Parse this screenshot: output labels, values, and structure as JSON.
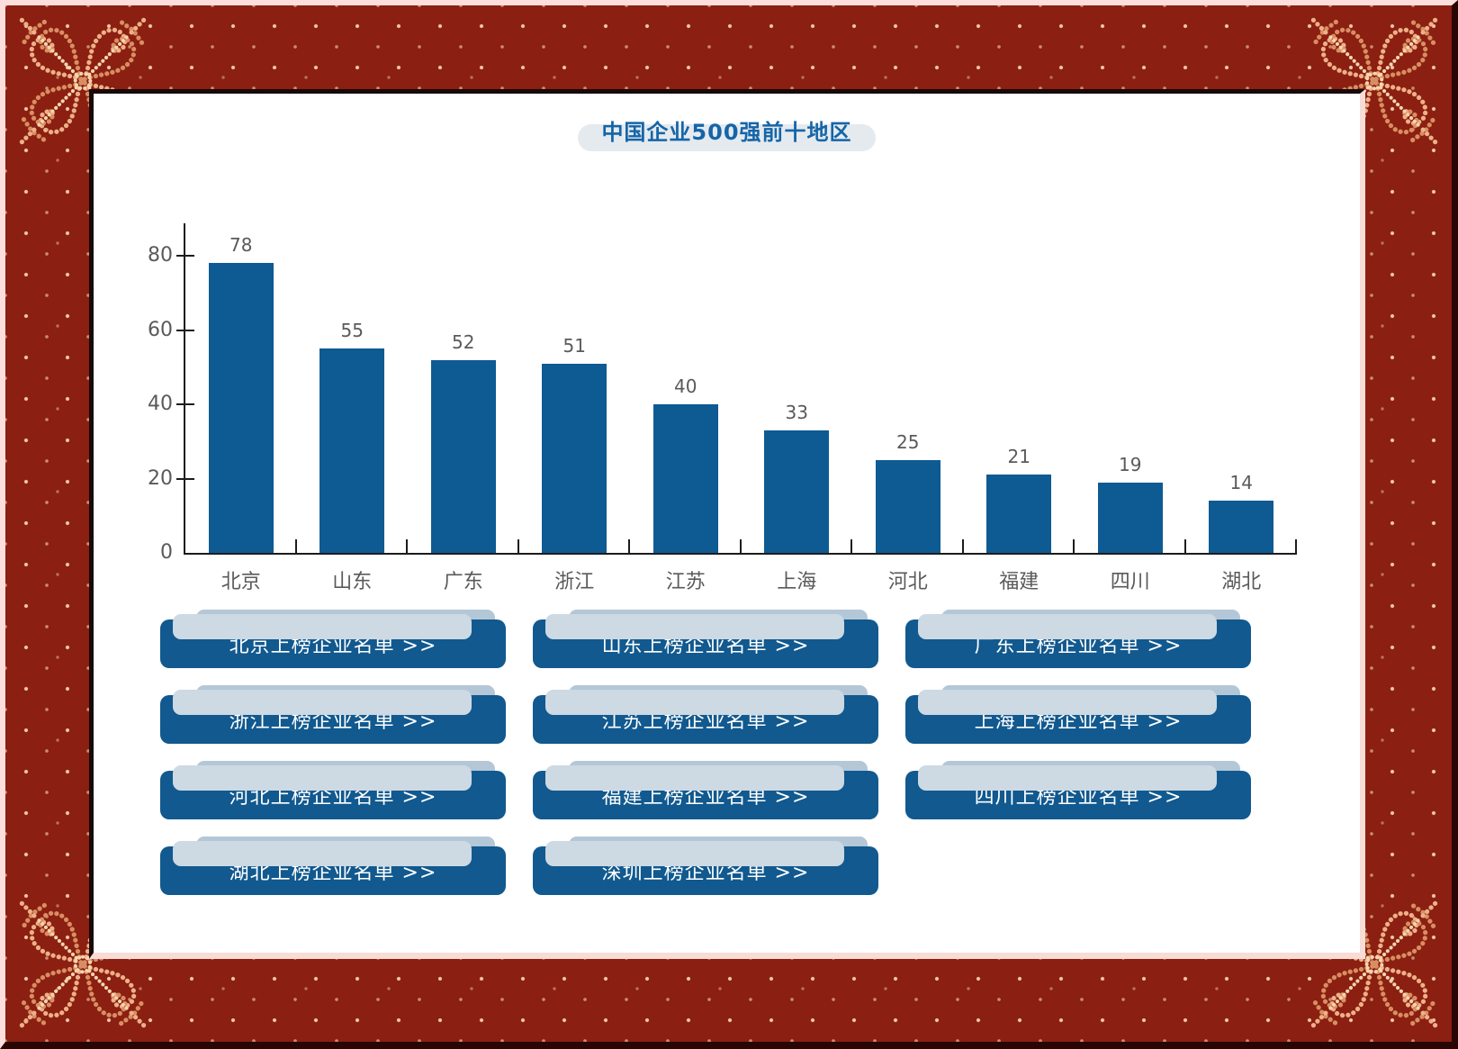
{
  "page": {
    "title": "中国企业500强前十地区"
  },
  "chart_data": {
    "type": "bar",
    "title": "中国企业500强前十地区",
    "categories": [
      "北京",
      "山东",
      "广东",
      "浙江",
      "江苏",
      "上海",
      "河北",
      "福建",
      "四川",
      "湖北"
    ],
    "values": [
      78,
      55,
      52,
      51,
      40,
      33,
      25,
      21,
      19,
      14
    ],
    "xlabel": "",
    "ylabel": "",
    "ylim": [
      0,
      80
    ],
    "yticks": [
      0,
      20,
      40,
      60,
      80
    ],
    "grid": false,
    "legend": "none",
    "bar_color": "#0e5a93",
    "value_label_color": "#5a5a5a",
    "axis_color": "#1c1c1c"
  },
  "buttons": [
    "北京上榜企业名单 >>",
    "山东上榜企业名单 >>",
    "广东上榜企业名单 >>",
    "浙江上榜企业名单 >>",
    "江苏上榜企业名单 >>",
    "上海上榜企业名单 >>",
    "河北上榜企业名单 >>",
    "福建上榜企业名单 >>",
    "四川上榜企业名单 >>",
    "湖北上榜企业名单 >>",
    "深圳上榜企业名单 >>"
  ],
  "colors": {
    "frame_red": "#8a1f12",
    "frame_dots": "#f2cba6",
    "frame_highlight": "#fcdfdd",
    "frame_shadow": "#2a0603",
    "panel_white": "#ffffff",
    "title_blue": "#1565a8",
    "title_pill": "#e5eaef",
    "bar_blue": "#0e5a93",
    "button_blue": "#11598f",
    "button_layer1": "#b4c7d7",
    "button_layer2": "#cdd9e3"
  }
}
